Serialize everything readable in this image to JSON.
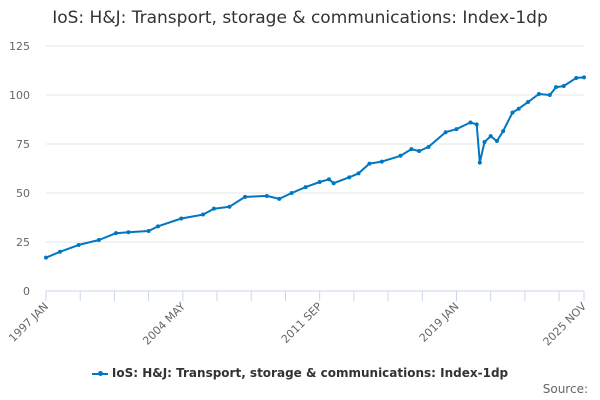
{
  "chart_data": {
    "type": "line",
    "title": "IoS: H&J: Transport, storage & communications: Index-1dp",
    "xlabel": "",
    "ylabel": "",
    "ylim": [
      0,
      125
    ],
    "yticks": [
      0,
      25,
      50,
      75,
      100,
      125
    ],
    "xticks": [
      "1997 JAN",
      "2004 MAY",
      "2011 SEP",
      "2019 JAN",
      "2025 NOV"
    ],
    "xrange": [
      "1997-01",
      "2025-11"
    ],
    "grid": "horizontal",
    "legend_position": "bottom",
    "color": "#0077c0",
    "series": [
      {
        "name": "IoS: H&J: Transport, storage & communications: Index-1dp",
        "points": [
          [
            "1997-01",
            17
          ],
          [
            "1997-10",
            20
          ],
          [
            "1998-10",
            23.5
          ],
          [
            "1999-11",
            26
          ],
          [
            "2000-10",
            29.5
          ],
          [
            "2001-06",
            30
          ],
          [
            "2002-07",
            30.6
          ],
          [
            "2003-01",
            33
          ],
          [
            "2004-04",
            37
          ],
          [
            "2005-06",
            39
          ],
          [
            "2006-01",
            42
          ],
          [
            "2006-11",
            43
          ],
          [
            "2007-09",
            48
          ],
          [
            "2008-11",
            48.5
          ],
          [
            "2009-07",
            47
          ],
          [
            "2010-03",
            50
          ],
          [
            "2010-12",
            53
          ],
          [
            "2011-09",
            55.6
          ],
          [
            "2012-03",
            57
          ],
          [
            "2012-06",
            55
          ],
          [
            "2013-04",
            58
          ],
          [
            "2013-10",
            60
          ],
          [
            "2014-05",
            65
          ],
          [
            "2015-01",
            66
          ],
          [
            "2016-01",
            69
          ],
          [
            "2016-08",
            72.4
          ],
          [
            "2017-01",
            71.4
          ],
          [
            "2017-07",
            73.5
          ],
          [
            "2018-06",
            81
          ],
          [
            "2019-01",
            82.6
          ],
          [
            "2019-10",
            86
          ],
          [
            "2020-02",
            85
          ],
          [
            "2020-04",
            65.5
          ],
          [
            "2020-07",
            76
          ],
          [
            "2020-11",
            79
          ],
          [
            "2021-03",
            76.5
          ],
          [
            "2021-07",
            81.6
          ],
          [
            "2022-01",
            91
          ],
          [
            "2022-05",
            93
          ],
          [
            "2022-11",
            96.4
          ],
          [
            "2023-06",
            100.5
          ],
          [
            "2024-01",
            100
          ],
          [
            "2024-05",
            104
          ],
          [
            "2024-10",
            104.6
          ],
          [
            "2025-06",
            108.7
          ],
          [
            "2025-11",
            109
          ]
        ]
      }
    ]
  },
  "source_label": "Source:"
}
